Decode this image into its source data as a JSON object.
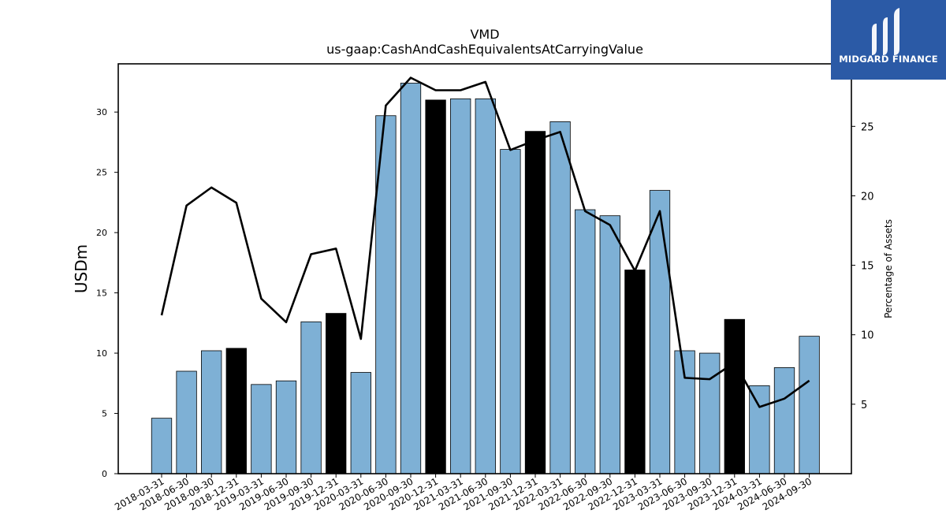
{
  "chart_data": {
    "type": "bar",
    "title": "VMD",
    "subtitle": "us-gaap:CashAndCashEquivalentsAtCarryingValue",
    "ylabel": "USDm",
    "y2label": "Percentage of Assets",
    "ylim": [
      0,
      34
    ],
    "y2lim": [
      0,
      29.5
    ],
    "yticks": [
      "0",
      "5",
      "10",
      "15",
      "20",
      "25",
      "30"
    ],
    "y2ticks": [
      "5",
      "10",
      "15",
      "20",
      "25"
    ],
    "categories": [
      "2018-03-31",
      "2018-06-30",
      "2018-09-30",
      "2018-12-31",
      "2019-03-31",
      "2019-06-30",
      "2019-09-30",
      "2019-12-31",
      "2020-03-31",
      "2020-06-30",
      "2020-09-30",
      "2020-12-31",
      "2021-03-31",
      "2021-06-30",
      "2021-09-30",
      "2021-12-31",
      "2022-03-31",
      "2022-06-30",
      "2022-09-30",
      "2022-12-31",
      "2023-03-31",
      "2023-06-30",
      "2023-09-30",
      "2023-12-31",
      "2024-03-31",
      "2024-06-30",
      "2024-09-30"
    ],
    "series": [
      {
        "values": [
          4.6,
          8.5,
          10.2,
          10.4,
          7.4,
          7.7,
          12.6,
          13.3,
          8.4,
          29.7,
          32.4,
          31.0,
          31.1,
          31.1,
          26.9,
          28.4,
          29.2,
          21.9,
          21.4,
          16.9,
          23.5,
          10.2,
          10.0,
          12.8,
          7.3,
          8.8,
          11.4
        ]
      },
      {
        "values": [
          11.4,
          19.3,
          20.6,
          19.5,
          12.6,
          10.9,
          15.8,
          16.2,
          9.7,
          26.5,
          28.5,
          27.6,
          27.6,
          28.2,
          23.3,
          24.0,
          24.6,
          18.9,
          17.9,
          14.6,
          18.9,
          6.9,
          6.8,
          8.0,
          4.8,
          5.4,
          6.7
        ]
      }
    ],
    "highlight_color": "#000000",
    "bar_color": "#7eb0d5",
    "line_color": "#000000",
    "year_end_suffix": "-12-31"
  },
  "logo": {
    "text": "MIDGARD FINANCE",
    "background": "#2b5aa6"
  }
}
